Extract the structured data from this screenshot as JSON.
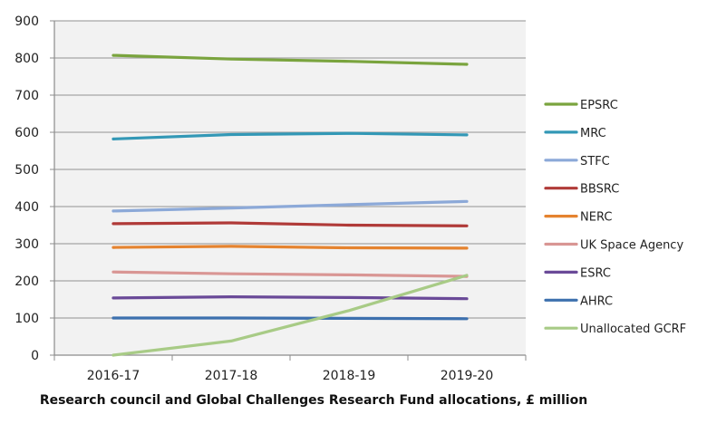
{
  "chart_data": {
    "type": "line",
    "title": "",
    "xlabel": "Research council and Global Challenges Research Fund allocations, £ million",
    "ylabel": "",
    "categories": [
      "2016-17",
      "2017-18",
      "2018-19",
      "2019-20"
    ],
    "ylim": [
      0,
      900
    ],
    "yticks": [
      0,
      100,
      200,
      300,
      400,
      500,
      600,
      700,
      800,
      900
    ],
    "grid": true,
    "legend_position": "right",
    "series": [
      {
        "name": "EPSRC",
        "color": "#7AA43E",
        "values": [
          807,
          797,
          791,
          783
        ]
      },
      {
        "name": "MRC",
        "color": "#3398B6",
        "values": [
          582,
          594,
          597,
          593
        ]
      },
      {
        "name": "STFC",
        "color": "#8CA9D8",
        "values": [
          388,
          396,
          405,
          414
        ]
      },
      {
        "name": "BBSRC",
        "color": "#B03A38",
        "values": [
          354,
          356,
          350,
          348
        ]
      },
      {
        "name": "NERC",
        "color": "#E5832F",
        "values": [
          290,
          293,
          289,
          288
        ]
      },
      {
        "name": "UK Space Agency",
        "color": "#D99694",
        "values": [
          224,
          219,
          216,
          212
        ]
      },
      {
        "name": "ESRC",
        "color": "#6A4A98",
        "values": [
          154,
          157,
          155,
          152
        ]
      },
      {
        "name": "AHRC",
        "color": "#3D70AE",
        "values": [
          100,
          100,
          99,
          98
        ]
      },
      {
        "name": "Unallocated GCRF",
        "color": "#A8CB86",
        "values": [
          0,
          38,
          120,
          215
        ]
      }
    ]
  }
}
